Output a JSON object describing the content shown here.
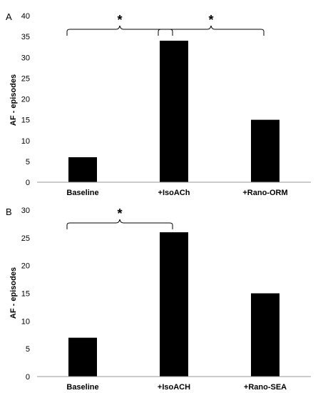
{
  "colors": {
    "bar": "#000000",
    "axis": "#999999",
    "text": "#000000",
    "background": "#ffffff"
  },
  "chart_data": [
    {
      "type": "bar",
      "panel_label": "A",
      "categories": [
        "Baseline",
        "+IsoACh",
        "+Rano-ORM"
      ],
      "values": [
        6,
        34,
        15
      ],
      "ylabel": "AF - episodes",
      "ylim": [
        0,
        40
      ],
      "yticks": [
        0,
        5,
        10,
        15,
        20,
        25,
        30,
        35,
        40
      ],
      "grid": false,
      "legend": "none",
      "significance": [
        {
          "from": "Baseline",
          "to": "+IsoACh",
          "mark": "*"
        },
        {
          "from": "+IsoACh",
          "to": "+Rano-ORM",
          "mark": "*"
        }
      ]
    },
    {
      "type": "bar",
      "panel_label": "B",
      "categories": [
        "Baseline",
        "+IsoACH",
        "+Rano-SEA"
      ],
      "values": [
        7,
        26,
        15
      ],
      "ylabel": "AF - episodes",
      "ylim": [
        0,
        30
      ],
      "yticks": [
        0,
        5,
        10,
        15,
        20,
        25,
        30
      ],
      "grid": false,
      "legend": "none",
      "significance": [
        {
          "from": "Baseline",
          "to": "+IsoACH",
          "mark": "*"
        }
      ]
    }
  ]
}
